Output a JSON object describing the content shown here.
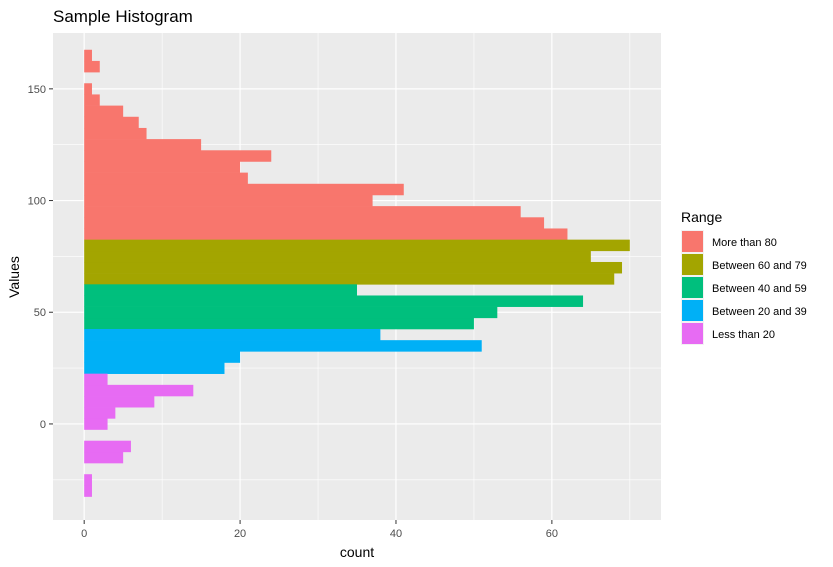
{
  "chart_data": {
    "type": "bar",
    "orientation": "horizontal-histogram",
    "title": "Sample Histogram",
    "xlabel": "count",
    "ylabel": "Values",
    "xlim": [
      -4,
      74
    ],
    "ylim": [
      -43,
      175
    ],
    "xticks": [
      0,
      20,
      40,
      60
    ],
    "yticks": [
      0,
      50,
      100,
      150
    ],
    "binwidth": 5,
    "grid": true,
    "legend": {
      "title": "Range",
      "placement": "right",
      "entries": [
        {
          "label": "More than 80",
          "color": "#F8766D"
        },
        {
          "label": "Between 60 and 79",
          "color": "#A3A500"
        },
        {
          "label": "Between 40 and 59",
          "color": "#00BF7D"
        },
        {
          "label": "Between 20 and 39",
          "color": "#00B0F6"
        },
        {
          "label": "Less than 20",
          "color": "#E76BF3"
        }
      ]
    },
    "series": [
      {
        "name": "More than 80",
        "color": "#F8766D",
        "bins": [
          {
            "y0": 82.5,
            "y1": 87.5,
            "count": 62
          },
          {
            "y0": 87.5,
            "y1": 92.5,
            "count": 59
          },
          {
            "y0": 92.5,
            "y1": 97.5,
            "count": 56
          },
          {
            "y0": 97.5,
            "y1": 102.5,
            "count": 37
          },
          {
            "y0": 102.5,
            "y1": 107.5,
            "count": 41
          },
          {
            "y0": 107.5,
            "y1": 112.5,
            "count": 21
          },
          {
            "y0": 112.5,
            "y1": 117.5,
            "count": 20
          },
          {
            "y0": 117.5,
            "y1": 122.5,
            "count": 24
          },
          {
            "y0": 122.5,
            "y1": 127.5,
            "count": 15
          },
          {
            "y0": 127.5,
            "y1": 132.5,
            "count": 8
          },
          {
            "y0": 132.5,
            "y1": 137.5,
            "count": 7
          },
          {
            "y0": 137.5,
            "y1": 142.5,
            "count": 5
          },
          {
            "y0": 142.5,
            "y1": 147.5,
            "count": 2
          },
          {
            "y0": 147.5,
            "y1": 152.5,
            "count": 1
          },
          {
            "y0": 152.5,
            "y1": 157.5,
            "count": 0
          },
          {
            "y0": 157.5,
            "y1": 162.5,
            "count": 2
          },
          {
            "y0": 162.5,
            "y1": 167.5,
            "count": 1
          }
        ]
      },
      {
        "name": "Between 60 and 79",
        "color": "#A3A500",
        "bins": [
          {
            "y0": 62.5,
            "y1": 67.5,
            "count": 68
          },
          {
            "y0": 67.5,
            "y1": 72.5,
            "count": 69
          },
          {
            "y0": 72.5,
            "y1": 77.5,
            "count": 65
          },
          {
            "y0": 77.5,
            "y1": 82.5,
            "count": 70
          }
        ]
      },
      {
        "name": "Between 40 and 59",
        "color": "#00BF7D",
        "bins": [
          {
            "y0": 42.5,
            "y1": 47.5,
            "count": 50
          },
          {
            "y0": 47.5,
            "y1": 52.5,
            "count": 53
          },
          {
            "y0": 52.5,
            "y1": 57.5,
            "count": 64
          },
          {
            "y0": 57.5,
            "y1": 62.5,
            "count": 35
          }
        ]
      },
      {
        "name": "Between 20 and 39",
        "color": "#00B0F6",
        "bins": [
          {
            "y0": 22.5,
            "y1": 27.5,
            "count": 18
          },
          {
            "y0": 27.5,
            "y1": 32.5,
            "count": 20
          },
          {
            "y0": 32.5,
            "y1": 37.5,
            "count": 51
          },
          {
            "y0": 37.5,
            "y1": 42.5,
            "count": 38
          }
        ]
      },
      {
        "name": "Less than 20",
        "color": "#E76BF3",
        "bins": [
          {
            "y0": -32.5,
            "y1": -27.5,
            "count": 1
          },
          {
            "y0": -27.5,
            "y1": -22.5,
            "count": 1
          },
          {
            "y0": -22.5,
            "y1": -17.5,
            "count": 0
          },
          {
            "y0": -17.5,
            "y1": -12.5,
            "count": 5
          },
          {
            "y0": -12.5,
            "y1": -7.5,
            "count": 6
          },
          {
            "y0": -7.5,
            "y1": -2.5,
            "count": 0
          },
          {
            "y0": -2.5,
            "y1": 2.5,
            "count": 3
          },
          {
            "y0": 2.5,
            "y1": 7.5,
            "count": 4
          },
          {
            "y0": 7.5,
            "y1": 12.5,
            "count": 9
          },
          {
            "y0": 12.5,
            "y1": 17.5,
            "count": 14
          },
          {
            "y0": 17.5,
            "y1": 22.5,
            "count": 3
          }
        ]
      }
    ]
  }
}
